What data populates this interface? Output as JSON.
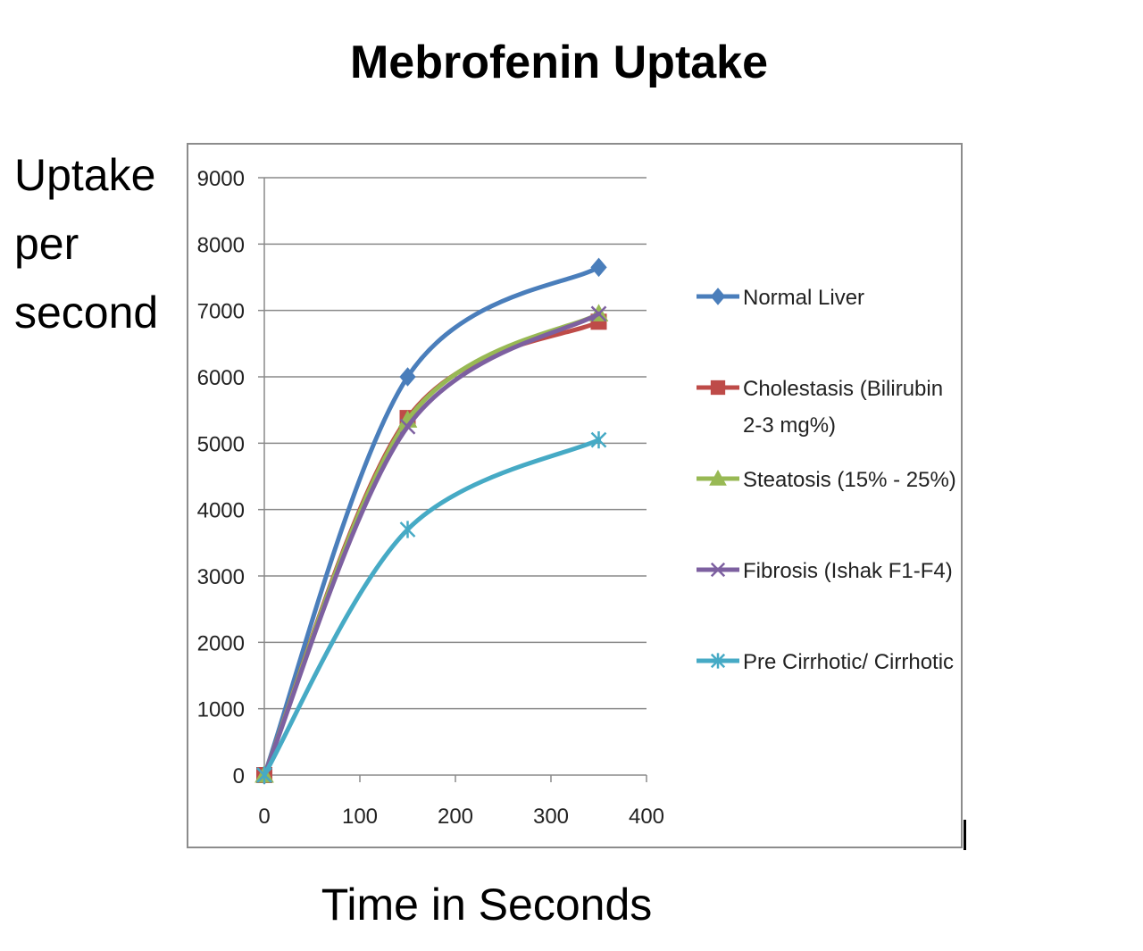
{
  "page": {
    "title": "Mebrofenin Uptake",
    "ylabel_lines": [
      "Uptake",
      "per",
      "second"
    ],
    "xlabel": "Time in Seconds"
  },
  "chart_data": {
    "type": "line",
    "smooth": true,
    "title": "Mebrofenin Uptake",
    "xlabel": "Time in Seconds",
    "ylabel": "Uptake per second",
    "xlim": [
      0,
      400
    ],
    "ylim": [
      0,
      9000
    ],
    "x_ticks": [
      0,
      100,
      200,
      300,
      400
    ],
    "y_ticks": [
      0,
      1000,
      2000,
      3000,
      4000,
      5000,
      6000,
      7000,
      8000,
      9000
    ],
    "grid": "horizontal",
    "legend_position": "right",
    "series": [
      {
        "name": "Normal Liver",
        "x": [
          0,
          150,
          350
        ],
        "y": [
          0,
          6000,
          7650
        ],
        "color": "#4a7ebb",
        "marker": "diamond"
      },
      {
        "name": "Cholestasis (Bilirubin 2-3 mg%)",
        "legend_lines": [
          "Cholestasis (Bilirubin",
          "2-3 mg%)"
        ],
        "x": [
          0,
          150,
          350
        ],
        "y": [
          0,
          5380,
          6830
        ],
        "color": "#be4b48",
        "marker": "square"
      },
      {
        "name": "Steatosis (15% - 25%)",
        "x": [
          0,
          150,
          350
        ],
        "y": [
          0,
          5350,
          6950
        ],
        "color": "#98b954",
        "marker": "triangle"
      },
      {
        "name": "Fibrosis (Ishak F1-F4)",
        "x": [
          0,
          150,
          350
        ],
        "y": [
          0,
          5250,
          6950
        ],
        "color": "#7d60a0",
        "marker": "x"
      },
      {
        "name": "Pre Cirrhotic/ Cirrhotic",
        "x": [
          0,
          150,
          350
        ],
        "y": [
          0,
          3700,
          5050
        ],
        "color": "#46aac5",
        "marker": "star"
      }
    ]
  }
}
